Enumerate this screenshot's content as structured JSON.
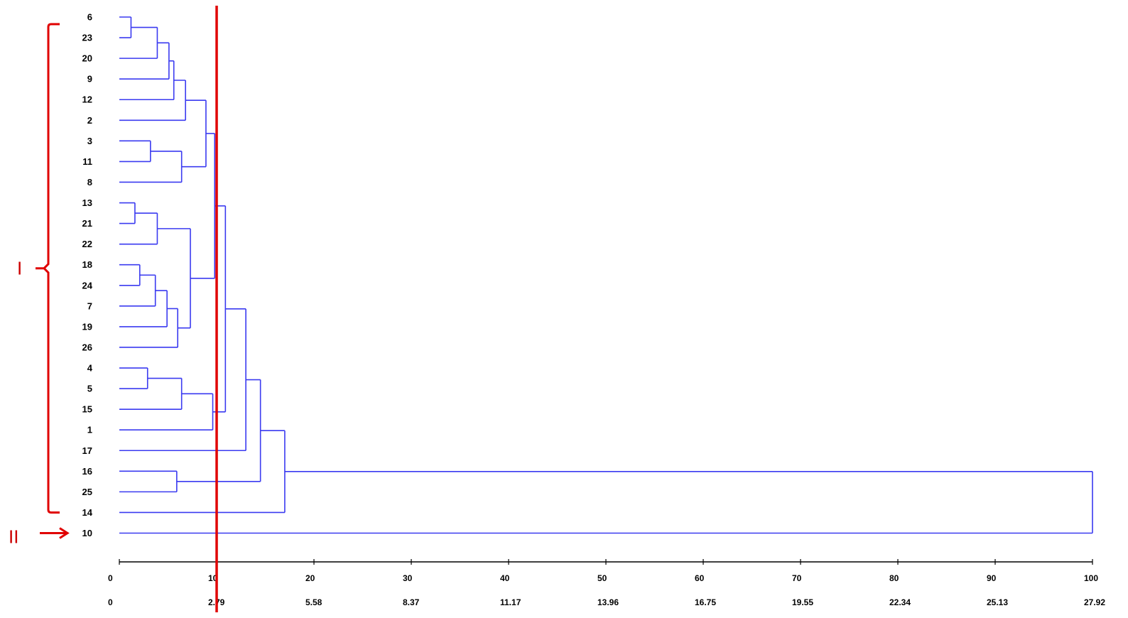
{
  "chart_data": {
    "type": "dendrogram",
    "orientation": "horizontal",
    "leaves": [
      "6",
      "23",
      "20",
      "9",
      "12",
      "2",
      "3",
      "11",
      "8",
      "13",
      "21",
      "22",
      "18",
      "24",
      "7",
      "19",
      "26",
      "4",
      "5",
      "15",
      "1",
      "17",
      "16",
      "25",
      "14",
      "10"
    ],
    "merges": [
      {
        "id": "m1",
        "children": [
          "6",
          "23"
        ],
        "height": 1.2
      },
      {
        "id": "m2",
        "children": [
          "m1",
          "20"
        ],
        "height": 3.9
      },
      {
        "id": "m3",
        "children": [
          "m2",
          "9"
        ],
        "height": 5.1
      },
      {
        "id": "m4",
        "children": [
          "m3",
          "12"
        ],
        "height": 5.6
      },
      {
        "id": "m5",
        "children": [
          "m4",
          "2"
        ],
        "height": 6.8
      },
      {
        "id": "m6",
        "children": [
          "3",
          "11"
        ],
        "height": 3.2
      },
      {
        "id": "m7",
        "children": [
          "m6",
          "8"
        ],
        "height": 6.4
      },
      {
        "id": "m8",
        "children": [
          "m5",
          "m7"
        ],
        "height": 8.9
      },
      {
        "id": "m9",
        "children": [
          "13",
          "21"
        ],
        "height": 1.6
      },
      {
        "id": "m10",
        "children": [
          "m9",
          "22"
        ],
        "height": 3.9
      },
      {
        "id": "m11",
        "children": [
          "18",
          "24"
        ],
        "height": 2.1
      },
      {
        "id": "m12",
        "children": [
          "m11",
          "7"
        ],
        "height": 3.7
      },
      {
        "id": "m13",
        "children": [
          "m12",
          "19"
        ],
        "height": 4.9
      },
      {
        "id": "m14",
        "children": [
          "m13",
          "26"
        ],
        "height": 6.0
      },
      {
        "id": "m15",
        "children": [
          "m10",
          "m14"
        ],
        "height": 7.3
      },
      {
        "id": "m16",
        "children": [
          "m8",
          "m15"
        ],
        "height": 9.8
      },
      {
        "id": "m17",
        "children": [
          "4",
          "5"
        ],
        "height": 2.9
      },
      {
        "id": "m18",
        "children": [
          "m17",
          "15"
        ],
        "height": 6.4
      },
      {
        "id": "m19",
        "children": [
          "m18",
          "1"
        ],
        "height": 9.6
      },
      {
        "id": "m20",
        "children": [
          "m16",
          "m19"
        ],
        "height": 10.9
      },
      {
        "id": "m21",
        "children": [
          "m20",
          "17"
        ],
        "height": 13.0
      },
      {
        "id": "m22",
        "children": [
          "16",
          "25"
        ],
        "height": 5.9
      },
      {
        "id": "m23",
        "children": [
          "m21",
          "m22"
        ],
        "height": 14.5
      },
      {
        "id": "m24",
        "children": [
          "m23",
          "14"
        ],
        "height": 17.0
      },
      {
        "id": "m25",
        "children": [
          "m24",
          "10"
        ],
        "height": 100
      }
    ],
    "x_axis_ticks": [
      0,
      10,
      20,
      30,
      40,
      50,
      60,
      70,
      80,
      90,
      100
    ],
    "x_axis_secondary_ticks": [
      "0",
      "2.79",
      "5.58",
      "8.37",
      "11.17",
      "13.96",
      "16.75",
      "19.55",
      "22.34",
      "25.13",
      "27.92"
    ],
    "xlim": [
      0,
      100
    ],
    "cut_line_value": 10,
    "groups": [
      {
        "label": "I",
        "from_leaf": "6",
        "to_leaf": "14",
        "marker": "bracket"
      },
      {
        "label": "II",
        "from_leaf": "10",
        "to_leaf": "10",
        "marker": "arrow"
      }
    ],
    "colors": {
      "tree": "#3a3af0",
      "annotation": "#e00000",
      "axis": "#000000",
      "text": "#000000"
    }
  }
}
